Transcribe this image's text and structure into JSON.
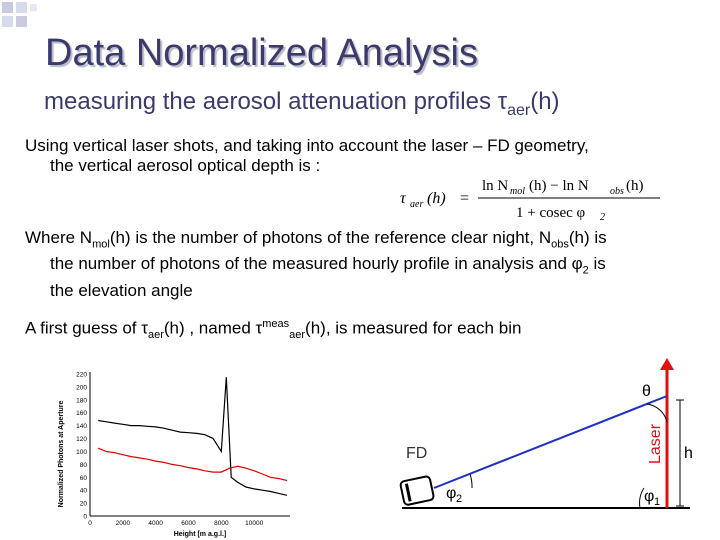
{
  "slide": {
    "title": "Data Normalized Analysis",
    "subtitle_prefix": "measuring the aerosol attenuation profiles ",
    "tau_symbol": "τ",
    "tau_sub_aer": "aer",
    "subtitle_suffix": "(h)",
    "para1_line1": "Using vertical laser shots, and taking into account the laser – FD geometry,",
    "para1_line2": "the vertical aerosol optical depth is :",
    "para2_l1_a": "Where N",
    "para2_l1_sub_mol": "mol",
    "para2_l1_b": "(h) is the number of photons of the reference clear night, N",
    "para2_l1_sub_obs": "obs",
    "para2_l1_c": "(h) is",
    "para2_line2": "the number of photons of the measured hourly profile in analysis and φ",
    "para2_l2_sub": "2",
    "para2_l2_end": " is",
    "para2_line3": "the elevation angle",
    "para3_a": "A first guess of ",
    "para3_tau1": "τ",
    "para3_sub1": "aer",
    "para3_b": "(h) , named ",
    "para3_tau2": "τ",
    "para3_sup": "meas",
    "para3_sub2": "aer",
    "para3_c": "(h),  is measured for each bin"
  },
  "formula": {
    "lhs_tau": "τ",
    "lhs_sub": "aer",
    "lhs_arg": "(h)",
    "equals": "=",
    "num_ln1": "ln N",
    "num_sub1": "mol",
    "num_arg1": "(h) − ln N",
    "num_sub2": "obs",
    "num_arg2": "(h)",
    "den": "1 + cosec φ",
    "den_sub": "2"
  },
  "chart_data": {
    "type": "line",
    "xlabel": "Height [m a.g.l.]",
    "ylabel": "Normalized Photons at Aperture",
    "x_ticks": [
      "0",
      "2000",
      "4000",
      "6000",
      "8000",
      "10000"
    ],
    "y_ticks": [
      "0",
      "20",
      "40",
      "60",
      "80",
      "100",
      "120",
      "140",
      "160",
      "180",
      "200",
      "220"
    ],
    "xlim": [
      0,
      12000
    ],
    "ylim": [
      0,
      220
    ],
    "series": [
      {
        "color": "#000000",
        "x": [
          500,
          1000,
          1500,
          2000,
          2500,
          3000,
          3500,
          4000,
          4500,
          5000,
          5500,
          6000,
          6500,
          7000,
          7500,
          8000,
          8300,
          8600,
          9000,
          9500,
          10000,
          10500,
          11000,
          11500,
          12000
        ],
        "y": [
          148,
          146,
          144,
          142,
          140,
          140,
          139,
          138,
          136,
          133,
          130,
          129,
          128,
          126,
          120,
          100,
          215,
          60,
          52,
          45,
          42,
          40,
          38,
          35,
          32
        ]
      },
      {
        "color": "#dd0000",
        "x": [
          500,
          1000,
          1500,
          2000,
          2500,
          3000,
          3500,
          4000,
          4500,
          5000,
          5500,
          6000,
          6500,
          7000,
          7500,
          8000,
          8500,
          9000,
          9500,
          10000,
          10500,
          11000,
          11500,
          12000
        ],
        "y": [
          105,
          100,
          98,
          95,
          92,
          90,
          88,
          85,
          83,
          80,
          78,
          75,
          73,
          70,
          68,
          68,
          74,
          77,
          74,
          70,
          65,
          60,
          58,
          55
        ]
      }
    ]
  },
  "geometry": {
    "theta": "θ",
    "laser": "Laser",
    "fd": "FD",
    "h": "h",
    "phi2_sym": "φ",
    "phi2_sub": "2",
    "phi1_sym": "φ",
    "phi1_sub": "1",
    "colors": {
      "laser": "#e01010",
      "line": "#2030c0"
    }
  }
}
